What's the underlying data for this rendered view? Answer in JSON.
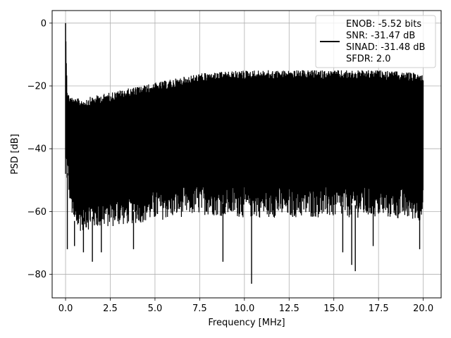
{
  "chart_data": {
    "type": "line",
    "title": "",
    "xlabel": "Frequency [MHz]",
    "ylabel": "PSD [dB]",
    "xlim": [
      -0.75,
      21.0
    ],
    "ylim": [
      -87.5,
      4.0
    ],
    "xticks": [
      0.0,
      2.5,
      5.0,
      7.5,
      10.0,
      12.5,
      15.0,
      17.5,
      20.0
    ],
    "xtick_labels": [
      "0.0",
      "2.5",
      "5.0",
      "7.5",
      "10.0",
      "12.5",
      "15.0",
      "17.5",
      "20.0"
    ],
    "yticks": [
      0,
      -20,
      -40,
      -60,
      -80
    ],
    "ytick_labels": [
      "0",
      "−20",
      "−40",
      "−60",
      "−80"
    ],
    "grid": true,
    "legend_position": "top-right",
    "series": [
      {
        "name": "",
        "color": "#000000",
        "peak": {
          "x": 0.0,
          "y": 0.0
        },
        "upper_envelope": {
          "x": [
            0.0,
            0.1,
            0.5,
            1.0,
            2.5,
            5.0,
            7.5,
            10.0,
            12.5,
            15.0,
            17.5,
            20.0
          ],
          "y": [
            0.0,
            -22,
            -24,
            -24,
            -22,
            -19,
            -16,
            -15,
            -15,
            -15,
            -15,
            -16
          ]
        },
        "lower_envelope": {
          "x": [
            0.0,
            0.5,
            1.0,
            2.5,
            5.0,
            7.5,
            10.0,
            12.5,
            15.0,
            17.5,
            20.0
          ],
          "y": [
            -48,
            -67,
            -66,
            -65,
            -63,
            -61,
            -62,
            -62,
            -62,
            -62,
            -63
          ]
        },
        "min_spikes": [
          {
            "x": 0.1,
            "y": -72
          },
          {
            "x": 0.5,
            "y": -71
          },
          {
            "x": 1.0,
            "y": -73
          },
          {
            "x": 1.5,
            "y": -76
          },
          {
            "x": 2.0,
            "y": -73
          },
          {
            "x": 3.8,
            "y": -72
          },
          {
            "x": 8.8,
            "y": -76
          },
          {
            "x": 10.4,
            "y": -83
          },
          {
            "x": 15.5,
            "y": -73
          },
          {
            "x": 16.0,
            "y": -77
          },
          {
            "x": 16.2,
            "y": -79
          },
          {
            "x": 17.2,
            "y": -71
          },
          {
            "x": 19.8,
            "y": -72
          }
        ]
      }
    ],
    "legend": {
      "lines": [
        "ENOB: -5.52 bits",
        "SNR: -31.47 dB",
        "SINAD: -31.48 dB",
        "SFDR: 2.0"
      ]
    }
  }
}
